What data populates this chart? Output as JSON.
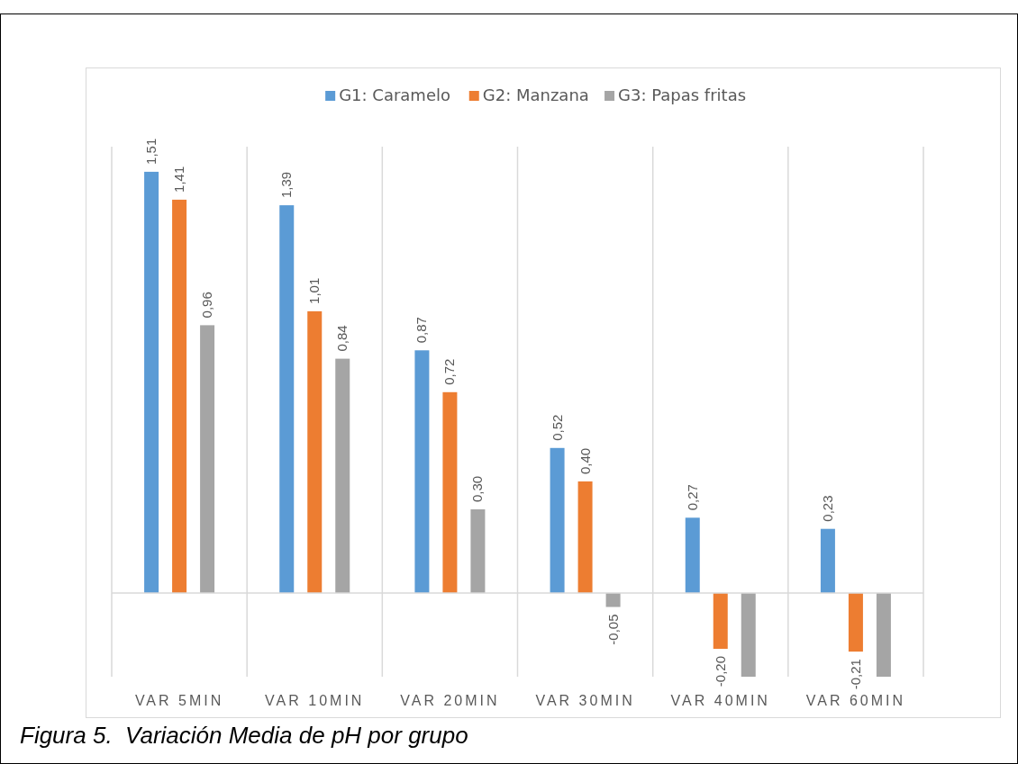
{
  "chart_data": {
    "type": "bar",
    "categories": [
      "VAR 5MIN",
      "VAR 10MIN",
      "VAR 20MIN",
      "VAR 30MIN",
      "VAR 40MIN",
      "VAR 60MIN"
    ],
    "series": [
      {
        "name": "G1: Caramelo",
        "color": "#5b9bd5",
        "values": [
          1.51,
          1.39,
          0.87,
          0.52,
          0.27,
          0.23
        ],
        "value_labels": [
          "1,51",
          "1,39",
          "0,87",
          "0,52",
          "0,27",
          "0,23"
        ]
      },
      {
        "name": "G2: Manzana",
        "color": "#ed7d31",
        "values": [
          1.41,
          1.01,
          0.72,
          0.4,
          -0.2,
          -0.21
        ],
        "value_labels": [
          "1,41",
          "1,01",
          "0,72",
          "0,40",
          "-0,20",
          "-0,21"
        ]
      },
      {
        "name": "G3: Papas fritas",
        "color": "#a5a5a5",
        "values": [
          0.96,
          0.84,
          0.3,
          -0.05,
          -0.3,
          -0.3
        ],
        "value_labels": [
          "0,96",
          "0,84",
          "0,30",
          "-0,05",
          null,
          null
        ]
      }
    ],
    "ylim": [
      -0.3,
      1.6
    ],
    "grid": "x",
    "legend": "top",
    "annotations": [
      "Figura 5.  Variación Media de pH por grupo"
    ]
  }
}
